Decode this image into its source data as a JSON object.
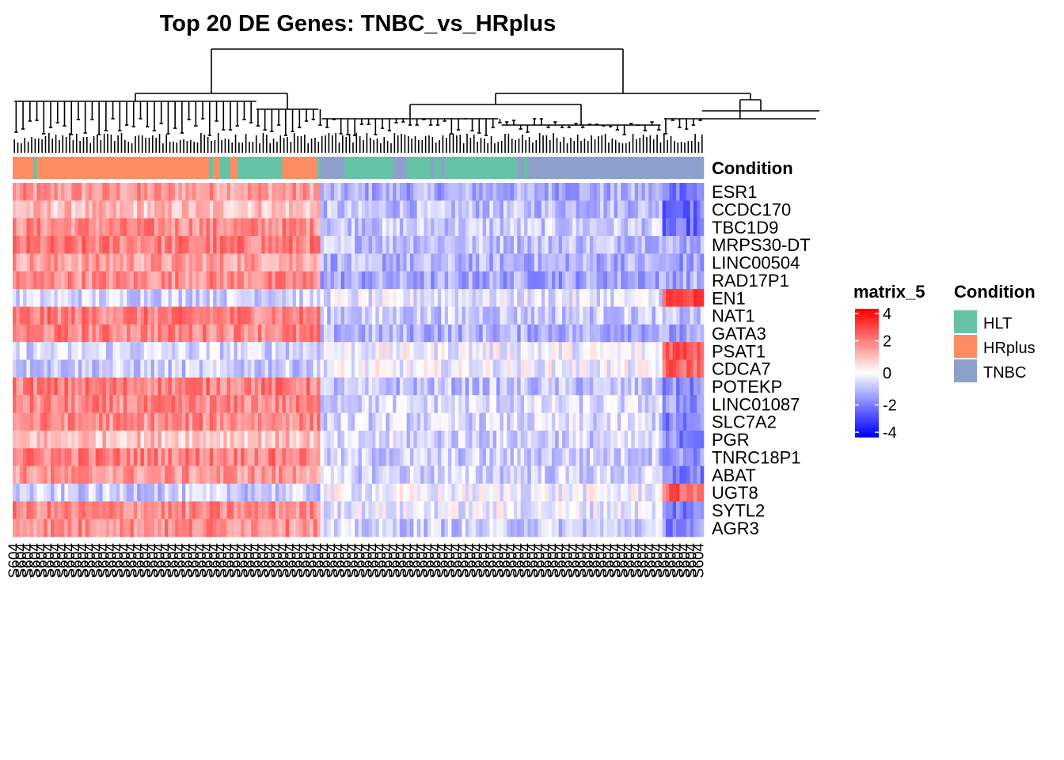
{
  "chart_data": {
    "type": "heatmap",
    "title": "Top 20 DE Genes: TNBC_vs_HRplus",
    "rows": [
      "ESR1",
      "CCDC170",
      "TBC1D9",
      "MRPS30-DT",
      "LINC00504",
      "RAD17P1",
      "EN1",
      "NAT1",
      "GATA3",
      "PSAT1",
      "CDCA7",
      "POTEKP",
      "LINC01087",
      "SLC7A2",
      "PGR",
      "TNRC18P1",
      "ABAT",
      "UGT8",
      "SYTL2",
      "AGR3"
    ],
    "column_annotation": {
      "name": "Condition",
      "groups_in_order": [
        {
          "condition": "HRplus",
          "count": 6
        },
        {
          "condition": "HLT",
          "count": 1
        },
        {
          "condition": "HRplus",
          "count": 50
        },
        {
          "condition": "HLT",
          "count": 1
        },
        {
          "condition": "HRplus",
          "count": 2
        },
        {
          "condition": "HLT",
          "count": 3
        },
        {
          "condition": "HRplus",
          "count": 2
        },
        {
          "condition": "HLT",
          "count": 13
        },
        {
          "condition": "HRplus",
          "count": 10
        },
        {
          "condition": "HLT",
          "count": 1
        },
        {
          "condition": "TNBC",
          "count": 7
        },
        {
          "condition": "HLT",
          "count": 14
        },
        {
          "condition": "TNBC",
          "count": 4
        },
        {
          "condition": "HLT",
          "count": 7
        },
        {
          "condition": "TNBC",
          "count": 1
        },
        {
          "condition": "HLT",
          "count": 2
        },
        {
          "condition": "TNBC",
          "count": 1
        },
        {
          "condition": "HLT",
          "count": 21
        },
        {
          "condition": "TNBC",
          "count": 2
        },
        {
          "condition": "HLT",
          "count": 1
        },
        {
          "condition": "TNBC",
          "count": 51
        }
      ]
    },
    "row_patterns": {
      "ESR1": [
        1.6,
        -1.3,
        -2.0
      ],
      "CCDC170": [
        1.0,
        -1.0,
        -2.2
      ],
      "TBC1D9": [
        1.8,
        -0.8,
        -2.4
      ],
      "MRPS30-DT": [
        2.0,
        -0.9,
        -1.2
      ],
      "LINC00504": [
        1.5,
        -1.2,
        -1.5
      ],
      "RAD17P1": [
        1.8,
        -1.4,
        -1.3
      ],
      "EN1": [
        -0.6,
        -0.4,
        2.8
      ],
      "NAT1": [
        2.0,
        -0.8,
        -1.0
      ],
      "GATA3": [
        1.9,
        -1.2,
        -1.6
      ],
      "PSAT1": [
        -0.6,
        -0.2,
        2.8
      ],
      "CDCA7": [
        -0.8,
        -0.2,
        2.4
      ],
      "POTEKP": [
        2.0,
        -1.0,
        -1.8
      ],
      "LINC01087": [
        1.8,
        -0.6,
        -1.6
      ],
      "SLC7A2": [
        1.8,
        -0.6,
        -2.0
      ],
      "PGR": [
        1.0,
        -0.7,
        -1.8
      ],
      "TNRC18P1": [
        2.0,
        -0.8,
        -1.6
      ],
      "ABAT": [
        1.6,
        -0.7,
        -2.0
      ],
      "UGT8": [
        -0.8,
        -0.2,
        2.4
      ],
      "SYTL2": [
        1.8,
        -0.3,
        -2.0
      ],
      "AGR3": [
        1.8,
        -0.8,
        -1.8
      ]
    },
    "color_scale": {
      "name": "matrix_5",
      "min": -4,
      "max": 4,
      "low": "#0000ff",
      "mid": "#ffffff",
      "high": "#ff0000",
      "ticks": [
        4,
        2,
        0,
        -2,
        -4
      ]
    },
    "legend_condition": {
      "title": "Condition",
      "items": [
        {
          "label": "HLT",
          "color": "#66c2a5"
        },
        {
          "label": "HRplus",
          "color": "#fc8d62"
        },
        {
          "label": "TNBC",
          "color": "#8da0cb"
        }
      ]
    },
    "column_label_note": "column sample labels are overplotted and illegible (begin with S6 / S60...)",
    "column_labels_visible": [
      "S604"
    ],
    "grid": false
  }
}
